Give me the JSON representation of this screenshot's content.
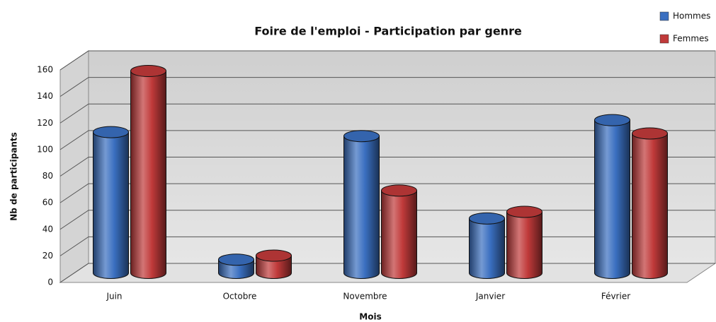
{
  "chart_data": {
    "type": "bar3d",
    "title": "Foire de l'emploi - Participation par genre",
    "x_label": "Mois",
    "y_label": "Nb de participants",
    "categories": [
      "Juin",
      "Octobre",
      "Novembre",
      "Janvier",
      "Février"
    ],
    "series": [
      {
        "name": "Hommes",
        "color": "#3a6fc0",
        "values": [
          106,
          10,
          103,
          41,
          115
        ]
      },
      {
        "name": "Femmes",
        "color": "#c03a3a",
        "values": [
          152,
          13,
          62,
          46,
          105
        ]
      }
    ],
    "ylim": [
      0,
      160
    ],
    "yticks": [
      0,
      20,
      40,
      60,
      80,
      100,
      120,
      140,
      160
    ],
    "grid": true,
    "legend": "top-right"
  }
}
